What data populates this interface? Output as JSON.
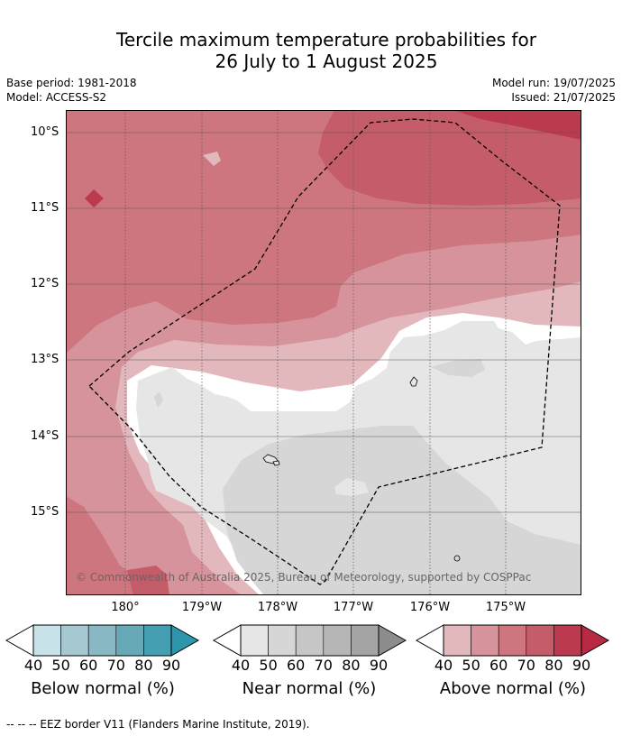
{
  "title_line1": "Tercile maximum temperature probabilities for",
  "title_line2": "26 July to 1 August 2025",
  "base_period": "Base period: 1981-2018",
  "model": "Model: ACCESS-S2",
  "model_run": "Model run: 19/07/2025",
  "issued": "Issued: 21/07/2025",
  "lat_labels": [
    "10°S",
    "11°S",
    "12°S",
    "13°S",
    "14°S",
    "15°S"
  ],
  "lon_labels": [
    "180°",
    "179°W",
    "178°W",
    "177°W",
    "176°W",
    "175°W"
  ],
  "copyright": "© Commonwealth of Australia 2025, Bureau of Meteorology, supported by COSPPac",
  "legend": {
    "tick_labels": [
      "40",
      "50",
      "60",
      "70",
      "80",
      "90"
    ],
    "below": {
      "title": "Below normal (%)",
      "colors": [
        "#c8e2ea",
        "#a6c9d1",
        "#89b8c5",
        "#68a9b8",
        "#449fb2",
        "#2e96aa"
      ]
    },
    "near": {
      "title": "Near normal (%)",
      "colors": [
        "#e6e6e6",
        "#d6d6d6",
        "#c6c6c6",
        "#b6b6b6",
        "#a4a4a4",
        "#8c8c8c"
      ]
    },
    "above": {
      "title": "Above normal (%)",
      "colors": [
        "#e2b8bd",
        "#d7939b",
        "#ce7680",
        "#c55c69",
        "#bc3a4d",
        "#b82a44"
      ]
    }
  },
  "footnote": "--  --  -- EEZ border V11 (Flanders Marine Institute, 2019)."
}
